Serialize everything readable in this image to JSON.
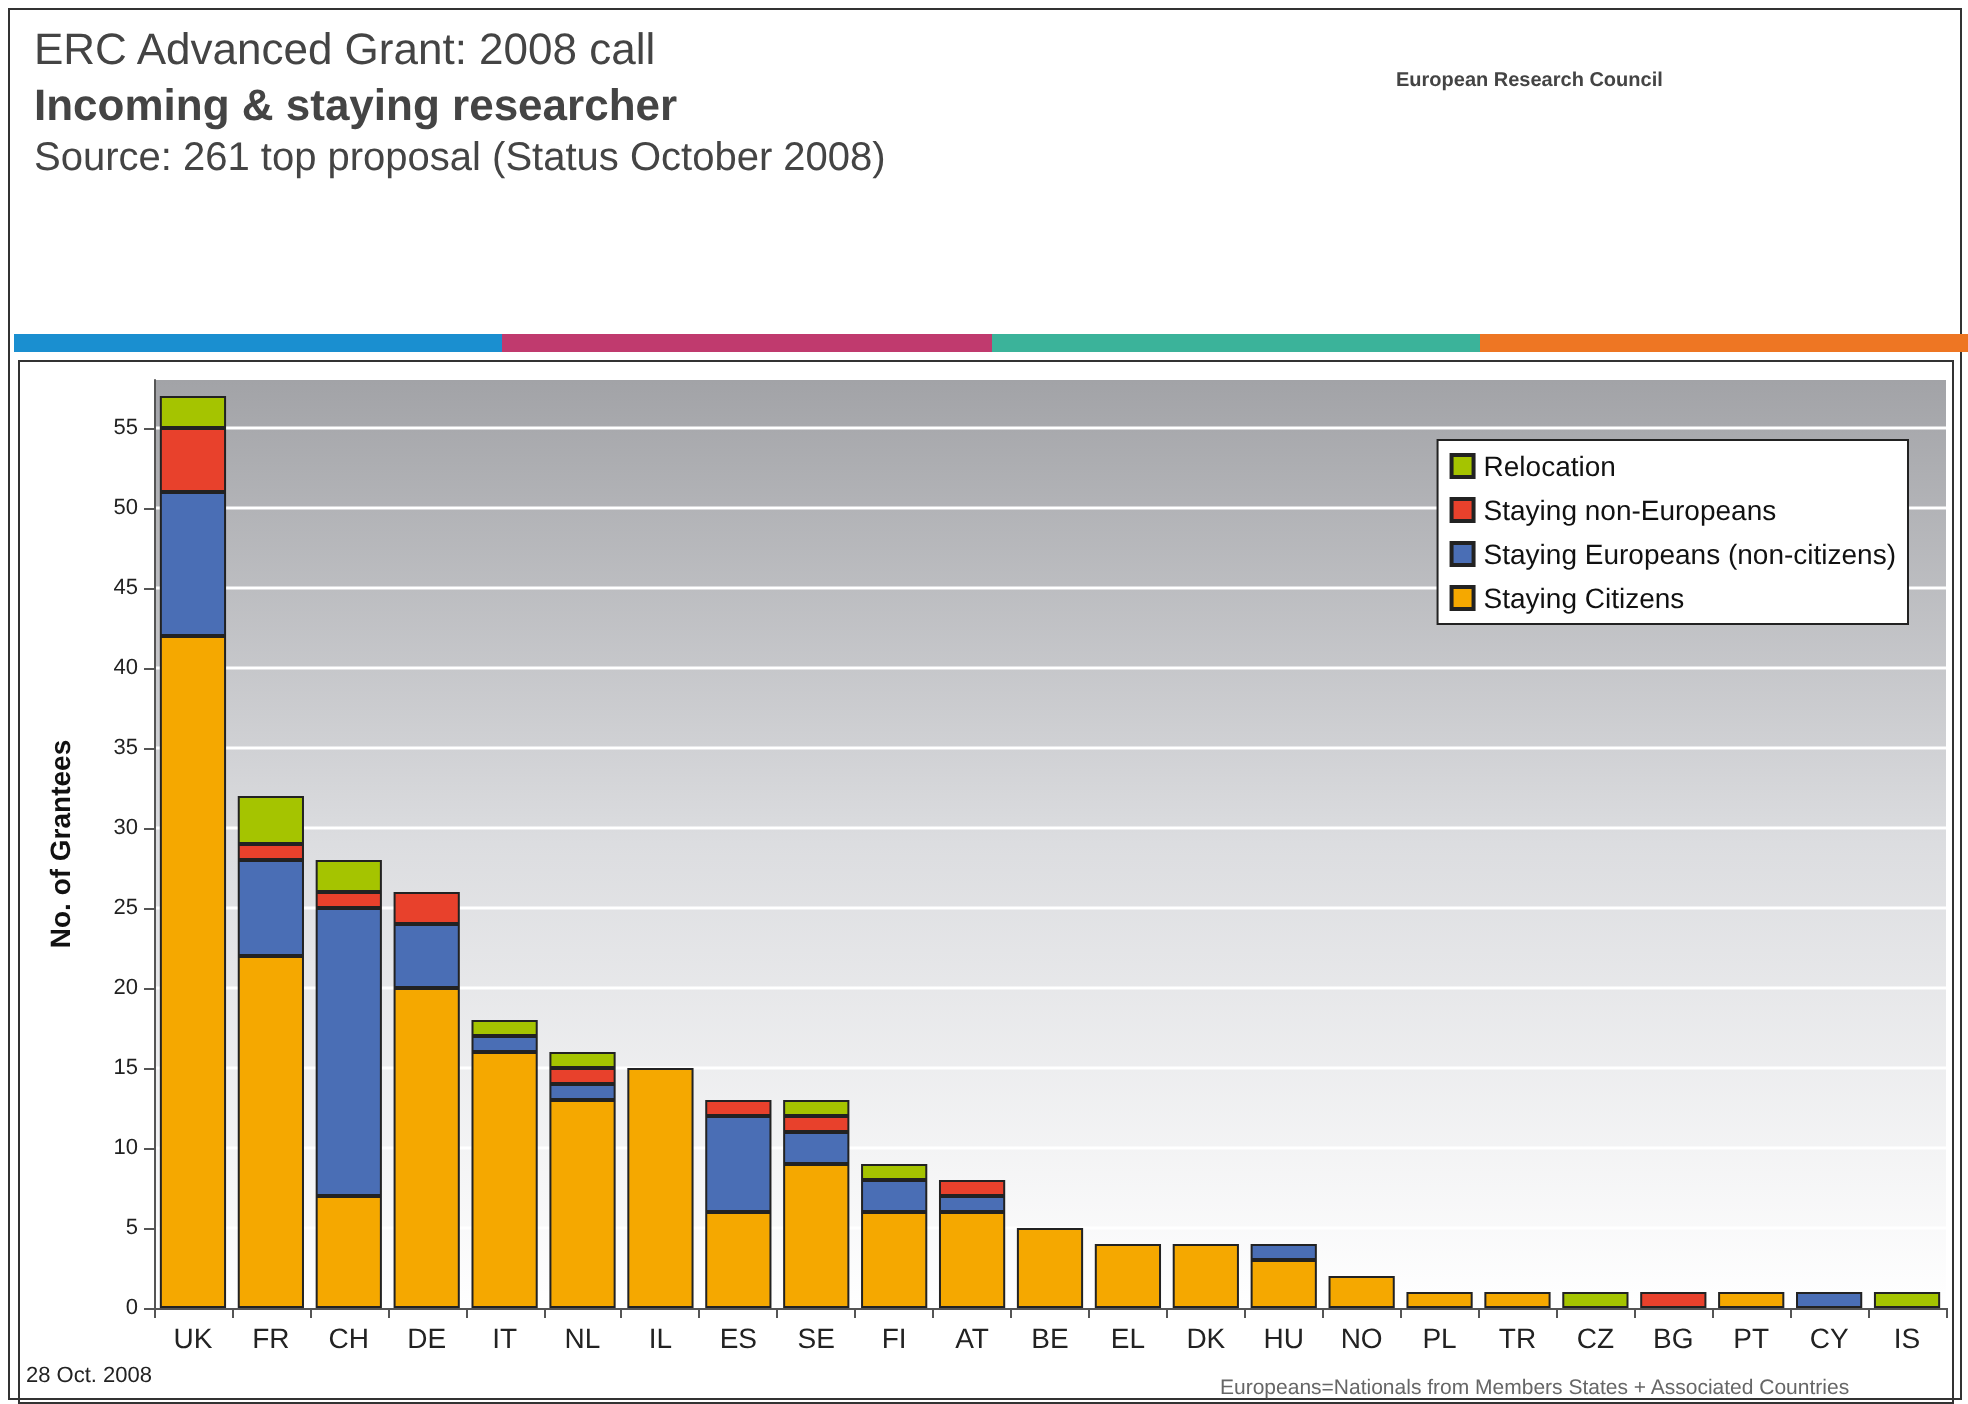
{
  "chart_data": {
    "type": "bar",
    "title": "ERC Advanced Grant: 2008 call",
    "subtitle": "Incoming & staying researcher",
    "ylabel": "No. of Grantees",
    "annotations": [
      "Source: 261 top proposal (Status October 2008)",
      "European Research Council",
      "28 Oct. 2008",
      "Europeans=Nationals from Members States + Associated Countries"
    ],
    "categories": [
      "UK",
      "FR",
      "CH",
      "DE",
      "IT",
      "NL",
      "IL",
      "ES",
      "SE",
      "FI",
      "AT",
      "BE",
      "EL",
      "DK",
      "HU",
      "NO",
      "PL",
      "TR",
      "CZ",
      "BG",
      "PT",
      "CY",
      "IS"
    ],
    "stacked": true,
    "series": [
      {
        "name": "Staying Citizens",
        "color": "#f5a800",
        "values": [
          42,
          22,
          7,
          20,
          16,
          13,
          15,
          6,
          9,
          6,
          6,
          5,
          4,
          4,
          3,
          2,
          1,
          1,
          0,
          0,
          1,
          0,
          0
        ]
      },
      {
        "name": "Staying Europeans (non-citizens)",
        "color": "#4a6eb5",
        "values": [
          9,
          6,
          18,
          4,
          1,
          1,
          0,
          6,
          2,
          2,
          1,
          0,
          0,
          0,
          1,
          0,
          0,
          0,
          0,
          0,
          0,
          1,
          0
        ]
      },
      {
        "name": "Staying non-Europeans",
        "color": "#e8412c",
        "values": [
          4,
          1,
          1,
          2,
          0,
          1,
          0,
          1,
          1,
          0,
          1,
          0,
          0,
          0,
          0,
          0,
          0,
          0,
          0,
          1,
          0,
          0,
          0
        ]
      },
      {
        "name": "Relocation",
        "color": "#a5c400",
        "values": [
          2,
          3,
          2,
          0,
          1,
          1,
          0,
          0,
          1,
          1,
          0,
          0,
          0,
          0,
          0,
          0,
          0,
          0,
          1,
          0,
          0,
          0,
          1
        ]
      }
    ],
    "ylim": [
      0,
      58
    ],
    "yticks": [
      0,
      5,
      10,
      15,
      20,
      25,
      30,
      35,
      40,
      45,
      50,
      55
    ],
    "grid": "y",
    "legend": "top right"
  }
}
